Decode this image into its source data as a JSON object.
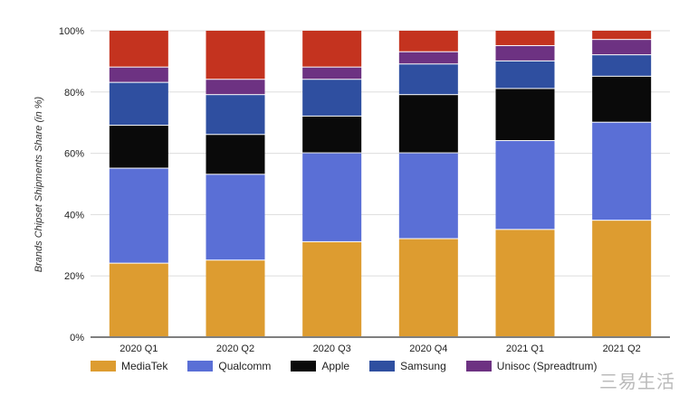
{
  "chart_data": {
    "type": "bar",
    "stacked": true,
    "title": "",
    "xlabel": "",
    "ylabel": "Brands Chipset Shipments Share (in %)",
    "ylim": [
      0,
      100
    ],
    "yticks": [
      "0%",
      "20%",
      "40%",
      "60%",
      "80%",
      "100%"
    ],
    "grid": true,
    "legend_position": "bottom",
    "categories": [
      "2020 Q1",
      "2020 Q2",
      "2020 Q3",
      "2020 Q4",
      "2021 Q1",
      "2021 Q2"
    ],
    "series": [
      {
        "name": "MediaTek",
        "color": "#dd9c30",
        "values": [
          24,
          25,
          31,
          32,
          35,
          38
        ]
      },
      {
        "name": "Qualcomm",
        "color": "#5a6fd6",
        "values": [
          31,
          28,
          29,
          28,
          29,
          32
        ]
      },
      {
        "name": "Apple",
        "color": "#0a0a0a",
        "values": [
          14,
          13,
          12,
          19,
          17,
          15
        ]
      },
      {
        "name": "Samsung",
        "color": "#2f4fa0",
        "values": [
          14,
          13,
          12,
          10,
          9,
          7
        ]
      },
      {
        "name": "Unisoc (Spreadtrum)",
        "color": "#6d3282",
        "values": [
          5,
          5,
          4,
          4,
          5,
          5
        ]
      },
      {
        "color": "#c4331f",
        "values": [
          12,
          16,
          12,
          7,
          5,
          3
        ]
      }
    ]
  },
  "watermark": "三易生活"
}
